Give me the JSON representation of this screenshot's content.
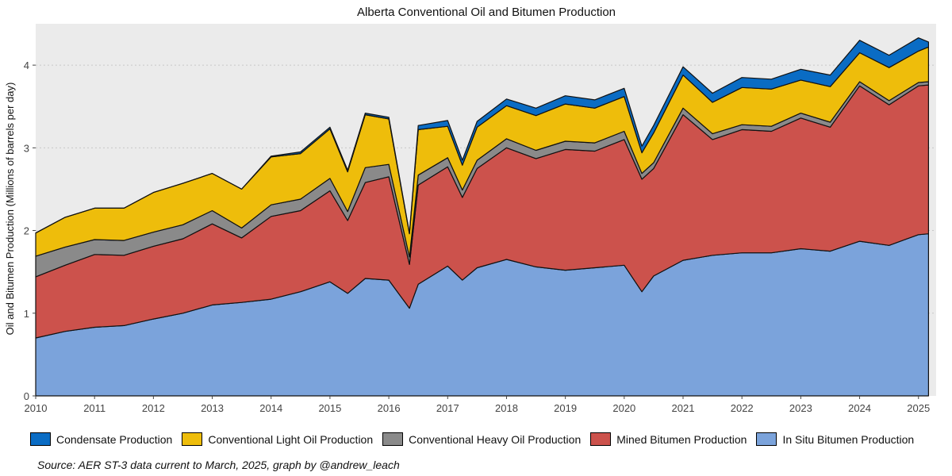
{
  "chart_data": {
    "type": "area",
    "stacked": true,
    "title": "Alberta Conventional Oil and Bitumen Production",
    "xlabel": "",
    "ylabel": "Oil and Bitumen Production (Millions of barrels per day)",
    "xlim": [
      2010,
      2025.3
    ],
    "ylim": [
      0,
      4.4
    ],
    "x_ticks": [
      2010,
      2011,
      2012,
      2013,
      2014,
      2015,
      2016,
      2017,
      2018,
      2019,
      2020,
      2021,
      2022,
      2023,
      2024,
      2025
    ],
    "x_tick_labels": [
      "2010",
      "2011",
      "2012",
      "2013",
      "2014",
      "2015",
      "2016",
      "2017",
      "2018",
      "2019",
      "2020",
      "2021",
      "2022",
      "2023",
      "2024",
      "2025"
    ],
    "y_ticks": [
      0,
      1,
      2,
      3,
      4
    ],
    "y_tick_labels": [
      "0",
      "1",
      "2",
      "3",
      "4"
    ],
    "grid": "horizontal-dotted",
    "legend_position": "bottom",
    "x": [
      2010.0,
      2010.5,
      2011.0,
      2011.5,
      2012.0,
      2012.5,
      2013.0,
      2013.5,
      2014.0,
      2014.5,
      2015.0,
      2015.3,
      2015.6,
      2016.0,
      2016.35,
      2016.5,
      2017.0,
      2017.25,
      2017.5,
      2018.0,
      2018.5,
      2019.0,
      2019.5,
      2020.0,
      2020.3,
      2020.5,
      2021.0,
      2021.5,
      2022.0,
      2022.5,
      2023.0,
      2023.5,
      2024.0,
      2024.5,
      2025.0,
      2025.17
    ],
    "series": [
      {
        "name": "In Situ Bitumen Production",
        "color": "#7ba3db",
        "values": [
          0.7,
          0.78,
          0.83,
          0.85,
          0.93,
          1.0,
          1.1,
          1.13,
          1.17,
          1.26,
          1.38,
          1.24,
          1.42,
          1.4,
          1.06,
          1.35,
          1.57,
          1.4,
          1.55,
          1.65,
          1.56,
          1.52,
          1.55,
          1.58,
          1.26,
          1.45,
          1.64,
          1.7,
          1.73,
          1.73,
          1.78,
          1.75,
          1.87,
          1.82,
          1.95,
          1.96
        ]
      },
      {
        "name": "Mined Bitumen Production",
        "color": "#cc524c",
        "values": [
          0.74,
          0.8,
          0.88,
          0.85,
          0.88,
          0.9,
          0.98,
          0.78,
          1.0,
          0.98,
          1.1,
          0.88,
          1.16,
          1.25,
          0.53,
          1.2,
          1.2,
          1.0,
          1.2,
          1.35,
          1.31,
          1.46,
          1.41,
          1.52,
          1.36,
          1.3,
          1.76,
          1.4,
          1.49,
          1.47,
          1.58,
          1.5,
          1.88,
          1.7,
          1.8,
          1.8
        ]
      },
      {
        "name": "Conventional Heavy Oil Production",
        "color": "#8a8a8a",
        "values": [
          0.25,
          0.22,
          0.18,
          0.18,
          0.17,
          0.17,
          0.16,
          0.12,
          0.14,
          0.14,
          0.15,
          0.11,
          0.18,
          0.15,
          0.09,
          0.12,
          0.11,
          0.09,
          0.1,
          0.11,
          0.1,
          0.1,
          0.1,
          0.1,
          0.07,
          0.07,
          0.08,
          0.07,
          0.06,
          0.06,
          0.06,
          0.06,
          0.05,
          0.05,
          0.04,
          0.04
        ]
      },
      {
        "name": "Conventional Light Oil Production",
        "color": "#eebd0b",
        "values": [
          0.28,
          0.36,
          0.38,
          0.39,
          0.48,
          0.5,
          0.45,
          0.47,
          0.58,
          0.55,
          0.6,
          0.48,
          0.64,
          0.55,
          0.28,
          0.55,
          0.38,
          0.3,
          0.4,
          0.4,
          0.42,
          0.45,
          0.42,
          0.42,
          0.25,
          0.36,
          0.4,
          0.38,
          0.45,
          0.45,
          0.4,
          0.43,
          0.35,
          0.4,
          0.38,
          0.42
        ]
      },
      {
        "name": "Condensate Production",
        "color": "#0a6cc4",
        "values": [
          0.0,
          0.0,
          0.0,
          0.0,
          0.0,
          0.0,
          0.0,
          0.0,
          0.01,
          0.02,
          0.02,
          0.02,
          0.02,
          0.02,
          0.01,
          0.05,
          0.07,
          0.06,
          0.07,
          0.08,
          0.09,
          0.1,
          0.1,
          0.1,
          0.08,
          0.09,
          0.1,
          0.11,
          0.12,
          0.12,
          0.13,
          0.14,
          0.15,
          0.15,
          0.16,
          0.06
        ]
      }
    ]
  },
  "legend": {
    "items": [
      {
        "label": "Condensate Production",
        "color": "#0a6cc4"
      },
      {
        "label": "Conventional Light Oil Production",
        "color": "#eebd0b"
      },
      {
        "label": "Conventional Heavy Oil Production",
        "color": "#8a8a8a"
      },
      {
        "label": "Mined Bitumen Production",
        "color": "#cc524c"
      },
      {
        "label": "In Situ Bitumen Production",
        "color": "#7ba3db"
      }
    ]
  },
  "caption": "Source: AER ST-3 data current to March, 2025, graph by @andrew_leach"
}
